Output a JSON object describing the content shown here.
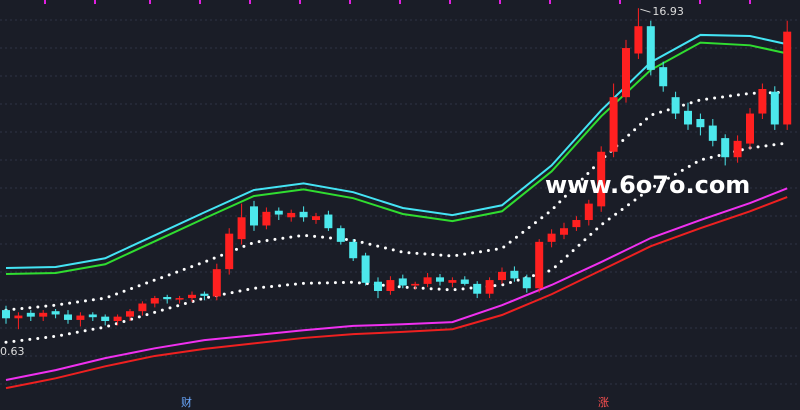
{
  "chart_data": {
    "type": "candlestick",
    "ylim": [
      9.57,
      17.08
    ],
    "colors": {
      "up": "#ff2020",
      "down": "#4ce8ec"
    },
    "open": [
      11.4,
      11.25,
      11.35,
      11.28,
      11.38,
      11.32,
      11.22,
      11.32,
      11.28,
      11.2,
      11.28,
      11.38,
      11.52,
      11.64,
      11.6,
      11.62,
      11.7,
      11.65,
      12.15,
      12.7,
      13.3,
      12.95,
      13.22,
      13.1,
      13.2,
      13.05,
      13.15,
      12.9,
      12.65,
      12.4,
      11.92,
      11.75,
      11.98,
      11.85,
      11.88,
      12.0,
      11.9,
      11.96,
      11.88,
      11.7,
      11.95,
      12.12,
      12.0,
      11.8,
      12.65,
      12.78,
      12.92,
      13.05,
      13.3,
      14.3,
      15.3,
      16.1,
      16.6,
      15.85,
      15.3,
      15.05,
      14.9,
      14.78,
      14.55,
      14.2,
      14.45,
      15.0,
      15.4,
      14.8
    ],
    "close": [
      11.25,
      11.3,
      11.28,
      11.35,
      11.32,
      11.22,
      11.3,
      11.27,
      11.2,
      11.28,
      11.38,
      11.52,
      11.62,
      11.6,
      11.62,
      11.68,
      11.66,
      12.15,
      12.8,
      13.1,
      12.95,
      13.2,
      13.15,
      13.18,
      13.1,
      13.12,
      12.9,
      12.65,
      12.35,
      11.9,
      11.75,
      11.95,
      11.85,
      11.88,
      12.0,
      11.92,
      11.95,
      11.88,
      11.7,
      11.95,
      12.1,
      11.98,
      11.8,
      12.65,
      12.8,
      12.9,
      13.05,
      13.35,
      14.3,
      15.3,
      16.2,
      16.6,
      15.8,
      15.5,
      15.0,
      14.8,
      14.75,
      14.5,
      14.2,
      14.5,
      15.0,
      15.45,
      14.8,
      16.5
    ],
    "high": [
      11.48,
      11.36,
      11.4,
      11.4,
      11.42,
      11.4,
      11.36,
      11.36,
      11.32,
      11.32,
      11.42,
      11.56,
      11.66,
      11.68,
      11.66,
      11.74,
      11.74,
      12.25,
      12.9,
      13.35,
      13.4,
      13.28,
      13.28,
      13.24,
      13.3,
      13.18,
      13.22,
      12.95,
      12.7,
      12.45,
      12.0,
      12.02,
      12.05,
      11.92,
      12.08,
      12.06,
      12.0,
      12.02,
      11.93,
      12.0,
      12.18,
      12.2,
      12.05,
      12.7,
      12.88,
      13.0,
      13.12,
      13.42,
      14.4,
      15.55,
      16.35,
      16.93,
      16.7,
      15.95,
      15.4,
      15.2,
      15.0,
      14.9,
      14.62,
      14.6,
      15.1,
      15.55,
      15.5,
      16.7
    ],
    "low": [
      11.15,
      11.05,
      11.2,
      11.2,
      11.25,
      11.15,
      11.1,
      11.2,
      11.12,
      11.12,
      11.2,
      11.3,
      11.45,
      11.52,
      11.52,
      11.55,
      11.58,
      11.58,
      12.05,
      12.6,
      12.85,
      12.88,
      13.05,
      13.02,
      13.02,
      12.98,
      12.85,
      12.6,
      12.3,
      11.85,
      11.62,
      11.68,
      11.8,
      11.78,
      11.82,
      11.85,
      11.82,
      11.85,
      11.62,
      11.62,
      11.88,
      11.92,
      11.72,
      11.72,
      12.55,
      12.7,
      12.85,
      12.95,
      13.2,
      14.2,
      15.2,
      16.0,
      15.7,
      15.4,
      14.9,
      14.7,
      14.6,
      14.4,
      14.05,
      14.1,
      14.35,
      14.9,
      14.7,
      14.7
    ],
    "overlays": {
      "x": [
        0,
        4,
        8,
        12,
        16,
        20,
        24,
        28,
        32,
        36,
        40,
        44,
        48,
        52,
        56,
        60,
        63
      ],
      "series": [
        {
          "color": "#44e4f4",
          "dotted": false,
          "values": [
            12.17,
            12.19,
            12.35,
            12.77,
            13.19,
            13.6,
            13.72,
            13.56,
            13.27,
            13.14,
            13.32,
            14.05,
            15.06,
            15.94,
            16.44,
            16.42,
            16.27
          ]
        },
        {
          "color": "#30dd30",
          "dotted": false,
          "values": [
            12.06,
            12.08,
            12.24,
            12.66,
            13.08,
            13.49,
            13.61,
            13.45,
            13.16,
            13.03,
            13.21,
            13.94,
            14.95,
            15.8,
            16.3,
            16.25,
            16.1
          ]
        },
        {
          "color": "#ffffff",
          "dotted": true,
          "values": [
            11.4,
            11.49,
            11.62,
            11.95,
            12.28,
            12.64,
            12.77,
            12.68,
            12.46,
            12.39,
            12.53,
            13.23,
            14.15,
            14.97,
            15.25,
            15.37,
            15.39
          ]
        },
        {
          "color": "#ffffff",
          "dotted": true,
          "values": [
            10.81,
            10.92,
            11.09,
            11.36,
            11.62,
            11.8,
            11.89,
            11.91,
            11.82,
            11.77,
            11.86,
            12.13,
            12.96,
            13.63,
            14.15,
            14.37,
            14.46
          ]
        },
        {
          "color": "#f030f0",
          "dotted": false,
          "values": [
            10.12,
            10.3,
            10.52,
            10.7,
            10.85,
            10.94,
            11.03,
            11.11,
            11.14,
            11.18,
            11.49,
            11.86,
            12.28,
            12.72,
            13.05,
            13.36,
            13.63
          ]
        },
        {
          "color": "#ee2020",
          "dotted": false,
          "values": [
            9.97,
            10.15,
            10.37,
            10.56,
            10.69,
            10.79,
            10.89,
            10.96,
            11.0,
            11.05,
            11.31,
            11.69,
            12.13,
            12.57,
            12.9,
            13.21,
            13.47
          ]
        }
      ]
    },
    "annotations": [
      "16.93",
      "0.63"
    ],
    "watermark": "www.6o7o.com",
    "markers": [
      "财",
      "涨"
    ]
  }
}
